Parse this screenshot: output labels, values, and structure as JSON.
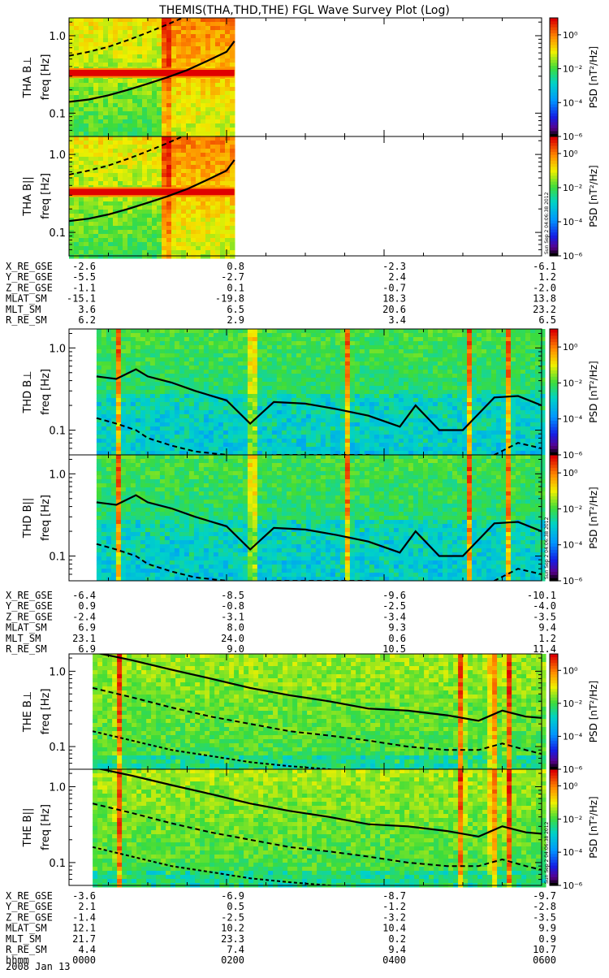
{
  "title": "THEMIS(THA,THD,THE) FGL Wave Survey Plot (Log)",
  "colorbar": {
    "label": "PSD [nT²/Hz]",
    "ticks": [
      "10⁰",
      "10⁻²",
      "10⁻⁴",
      "10⁻⁶"
    ],
    "stamp": "Sun Sep  2 04:06:38 2012"
  },
  "ylabel_freq": "freq [Hz]",
  "yticks": [
    "1.0",
    "0.1"
  ],
  "chart_data": [
    {
      "type": "heatmap",
      "name": "THA B⊥",
      "ylabel": "THA B⊥",
      "y_scale": "log",
      "ylim": [
        0.05,
        1.7
      ],
      "data_coverage_hours": [
        0,
        2.1
      ],
      "spectral_line_hz": 0.33,
      "x_hours": [
        0,
        0.25,
        0.5,
        0.75,
        1.0,
        1.25,
        1.5,
        1.75,
        2.0,
        2.1
      ],
      "solid_line_hz": [
        0.14,
        0.15,
        0.17,
        0.2,
        0.24,
        0.29,
        0.36,
        0.47,
        0.62,
        0.85
      ],
      "dashed_line_hz": [
        0.55,
        0.62,
        0.72,
        0.88,
        1.1,
        1.4,
        1.8,
        2.3,
        3.0,
        3.5
      ],
      "colorbar": {
        "range": [
          1e-06,
          10
        ],
        "scale": "log"
      }
    },
    {
      "type": "heatmap",
      "name": "THA B||",
      "ylabel": "THA B||",
      "y_scale": "log",
      "ylim": [
        0.05,
        1.7
      ],
      "data_coverage_hours": [
        0,
        2.1
      ],
      "spectral_line_hz": 0.33,
      "x_hours": [
        0,
        0.25,
        0.5,
        0.75,
        1.0,
        1.25,
        1.5,
        1.75,
        2.0,
        2.1
      ],
      "solid_line_hz": [
        0.14,
        0.15,
        0.17,
        0.2,
        0.24,
        0.29,
        0.36,
        0.47,
        0.62,
        0.85
      ],
      "dashed_line_hz": [
        0.55,
        0.62,
        0.72,
        0.88,
        1.1,
        1.4,
        1.8,
        2.3,
        3.0,
        3.5
      ],
      "colorbar": {
        "range": [
          1e-06,
          10
        ],
        "scale": "log"
      }
    },
    {
      "type": "heatmap",
      "name": "THD B⊥",
      "ylabel": "THD B⊥",
      "y_scale": "log",
      "ylim": [
        0.05,
        1.7
      ],
      "data_coverage_hours": [
        0.35,
        6.0
      ],
      "x_hours": [
        0.35,
        0.6,
        0.85,
        1.0,
        1.3,
        1.6,
        2.0,
        2.3,
        2.6,
        3.0,
        3.4,
        3.8,
        4.2,
        4.4,
        4.7,
        5.0,
        5.4,
        5.7,
        6.0
      ],
      "solid_line_hz": [
        0.45,
        0.42,
        0.55,
        0.45,
        0.38,
        0.3,
        0.23,
        0.12,
        0.22,
        0.21,
        0.18,
        0.15,
        0.11,
        0.2,
        0.1,
        0.1,
        0.25,
        0.26,
        0.2
      ],
      "dashed_line_hz": [
        0.14,
        0.12,
        0.1,
        0.08,
        0.065,
        0.055,
        0.05,
        0.045,
        0.05,
        0.05,
        0.05,
        0.05,
        0.045,
        0.04,
        0.04,
        0.04,
        0.05,
        0.07,
        0.06
      ],
      "colorbar": {
        "range": [
          1e-06,
          10
        ],
        "scale": "log"
      }
    },
    {
      "type": "heatmap",
      "name": "THD B||",
      "ylabel": "THD B||",
      "y_scale": "log",
      "ylim": [
        0.05,
        1.7
      ],
      "data_coverage_hours": [
        0.35,
        6.0
      ],
      "x_hours": [
        0.35,
        0.6,
        0.85,
        1.0,
        1.3,
        1.6,
        2.0,
        2.3,
        2.6,
        3.0,
        3.4,
        3.8,
        4.2,
        4.4,
        4.7,
        5.0,
        5.4,
        5.7,
        6.0
      ],
      "solid_line_hz": [
        0.45,
        0.42,
        0.55,
        0.45,
        0.38,
        0.3,
        0.23,
        0.12,
        0.22,
        0.21,
        0.18,
        0.15,
        0.11,
        0.2,
        0.1,
        0.1,
        0.25,
        0.26,
        0.2
      ],
      "dashed_line_hz": [
        0.14,
        0.12,
        0.1,
        0.08,
        0.065,
        0.055,
        0.05,
        0.045,
        0.05,
        0.05,
        0.05,
        0.05,
        0.045,
        0.04,
        0.04,
        0.04,
        0.05,
        0.07,
        0.06
      ],
      "colorbar": {
        "range": [
          1e-06,
          10
        ],
        "scale": "log"
      }
    },
    {
      "type": "heatmap",
      "name": "THE B⊥",
      "ylabel": "THE B⊥",
      "y_scale": "log",
      "ylim": [
        0.05,
        1.7
      ],
      "data_coverage_hours": [
        0.3,
        6.0
      ],
      "x_hours": [
        0.3,
        0.8,
        1.3,
        1.8,
        2.3,
        2.8,
        3.3,
        3.8,
        4.3,
        4.8,
        5.2,
        5.5,
        5.8,
        6.0
      ],
      "solid_line_hz": [
        1.8,
        1.4,
        1.05,
        0.8,
        0.6,
        0.48,
        0.4,
        0.32,
        0.3,
        0.26,
        0.22,
        0.3,
        0.25,
        0.24
      ],
      "dashed_line_hz": [
        0.6,
        0.45,
        0.33,
        0.25,
        0.2,
        0.16,
        0.14,
        0.12,
        0.1,
        0.09,
        0.09,
        0.11,
        0.09,
        0.08
      ],
      "dotted_line_hz": [
        0.16,
        0.12,
        0.09,
        0.075,
        0.062,
        0.055,
        0.05,
        0.045,
        0.042,
        0.04,
        0.04,
        0.05,
        0.045,
        0.04
      ],
      "colorbar": {
        "range": [
          1e-06,
          10
        ],
        "scale": "log"
      }
    },
    {
      "type": "heatmap",
      "name": "THE B||",
      "ylabel": "THE B||",
      "y_scale": "log",
      "ylim": [
        0.05,
        1.7
      ],
      "data_coverage_hours": [
        0.3,
        6.0
      ],
      "x_hours": [
        0.3,
        0.8,
        1.3,
        1.8,
        2.3,
        2.8,
        3.3,
        3.8,
        4.3,
        4.8,
        5.2,
        5.5,
        5.8,
        6.0
      ],
      "solid_line_hz": [
        1.8,
        1.4,
        1.05,
        0.8,
        0.6,
        0.48,
        0.4,
        0.32,
        0.3,
        0.26,
        0.22,
        0.3,
        0.25,
        0.24
      ],
      "dashed_line_hz": [
        0.6,
        0.45,
        0.33,
        0.25,
        0.2,
        0.16,
        0.14,
        0.12,
        0.1,
        0.09,
        0.09,
        0.11,
        0.09,
        0.08
      ],
      "dotted_line_hz": [
        0.16,
        0.12,
        0.09,
        0.075,
        0.062,
        0.055,
        0.05,
        0.045,
        0.042,
        0.04,
        0.04,
        0.05,
        0.045,
        0.04
      ],
      "colorbar": {
        "range": [
          1e-06,
          10
        ],
        "scale": "log"
      }
    }
  ],
  "ephemeris": [
    {
      "rows": [
        {
          "label": "X_RE_GSE",
          "values": [
            "-2.6",
            "0.8",
            "-2.3",
            "-6.1"
          ]
        },
        {
          "label": "Y_RE_GSE",
          "values": [
            "-5.5",
            "-2.7",
            "2.4",
            "1.2"
          ]
        },
        {
          "label": "Z_RE_GSE",
          "values": [
            "-1.1",
            "0.1",
            "-0.7",
            "-2.0"
          ]
        },
        {
          "label": "MLAT_SM",
          "values": [
            "-15.1",
            "-19.8",
            "18.3",
            "13.8"
          ]
        },
        {
          "label": "MLT_SM",
          "values": [
            "3.6",
            "6.5",
            "20.6",
            "23.2"
          ]
        },
        {
          "label": "R_RE_SM",
          "values": [
            "6.2",
            "2.9",
            "3.4",
            "6.5"
          ]
        }
      ]
    },
    {
      "rows": [
        {
          "label": "X_RE_GSE",
          "values": [
            "-6.4",
            "-8.5",
            "-9.6",
            "-10.1"
          ]
        },
        {
          "label": "Y_RE_GSE",
          "values": [
            "0.9",
            "-0.8",
            "-2.5",
            "-4.0"
          ]
        },
        {
          "label": "Z_RE_GSE",
          "values": [
            "-2.4",
            "-3.1",
            "-3.4",
            "-3.5"
          ]
        },
        {
          "label": "MLAT_SM",
          "values": [
            "6.9",
            "8.0",
            "9.3",
            "9.4"
          ]
        },
        {
          "label": "MLT_SM",
          "values": [
            "23.1",
            "24.0",
            "0.6",
            "1.2"
          ]
        },
        {
          "label": "R_RE_SM",
          "values": [
            "6.9",
            "9.0",
            "10.5",
            "11.4"
          ]
        }
      ]
    },
    {
      "rows": [
        {
          "label": "X_RE_GSE",
          "values": [
            "-3.6",
            "-6.9",
            "-8.7",
            "-9.7"
          ]
        },
        {
          "label": "Y_RE_GSE",
          "values": [
            "2.1",
            "0.5",
            "-1.2",
            "-2.8"
          ]
        },
        {
          "label": "Z_RE_GSE",
          "values": [
            "-1.4",
            "-2.5",
            "-3.2",
            "-3.5"
          ]
        },
        {
          "label": "MLAT_SM",
          "values": [
            "12.1",
            "10.2",
            "10.4",
            "9.9"
          ]
        },
        {
          "label": "MLT_SM",
          "values": [
            "21.7",
            "23.3",
            "0.2",
            "0.9"
          ]
        },
        {
          "label": "R_RE_SM",
          "values": [
            "4.4",
            "7.4",
            "9.4",
            "10.7"
          ]
        },
        {
          "label": "hhmm",
          "values": [
            "0000",
            "0200",
            "0400",
            "0600"
          ]
        }
      ]
    }
  ],
  "date_label": "2008 Jan 13"
}
